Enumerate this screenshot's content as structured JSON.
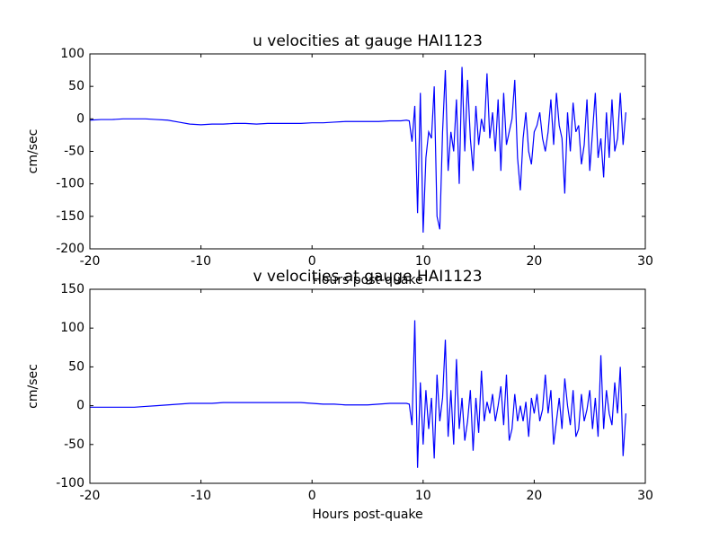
{
  "chart_data": [
    {
      "type": "line",
      "title": "u velocities at gauge HAI1123",
      "xlabel": "Hours post-quake",
      "ylabel": "cm/sec",
      "xlim": [
        -20,
        30
      ],
      "ylim": [
        -200,
        100
      ],
      "xticks": [
        -20,
        -10,
        0,
        10,
        20,
        30
      ],
      "yticks": [
        -200,
        -150,
        -100,
        -50,
        0,
        50,
        100
      ],
      "x": [
        -20,
        -19,
        -18,
        -17,
        -16,
        -15,
        -14,
        -13,
        -12,
        -11,
        -10,
        -9,
        -8,
        -7,
        -6,
        -5,
        -4,
        -3,
        -2,
        -1,
        0,
        1,
        2,
        3,
        4,
        5,
        6,
        7,
        8,
        8.5,
        8.75,
        9,
        9.25,
        9.5,
        9.75,
        10,
        10.25,
        10.5,
        10.75,
        11,
        11.25,
        11.5,
        11.75,
        12,
        12.25,
        12.5,
        12.75,
        13,
        13.25,
        13.5,
        13.75,
        14,
        14.25,
        14.5,
        14.75,
        15,
        15.25,
        15.5,
        15.75,
        16,
        16.25,
        16.5,
        16.75,
        17,
        17.25,
        17.5,
        17.75,
        18,
        18.25,
        18.5,
        18.75,
        19,
        19.25,
        19.5,
        19.75,
        20,
        20.25,
        20.5,
        20.75,
        21,
        21.25,
        21.5,
        21.75,
        22,
        22.25,
        22.5,
        22.75,
        23,
        23.25,
        23.5,
        23.75,
        24,
        24.25,
        24.5,
        24.75,
        25,
        25.25,
        25.5,
        25.75,
        26,
        26.25,
        26.5,
        26.75,
        27,
        27.25,
        27.5,
        27.75,
        28,
        28.25
      ],
      "series": [
        {
          "color": "#0000ff",
          "values": [
            -2,
            -1,
            -1,
            0,
            0,
            0,
            -1,
            -2,
            -5,
            -8,
            -9,
            -8,
            -8,
            -7,
            -7,
            -8,
            -7,
            -7,
            -7,
            -7,
            -6,
            -6,
            -5,
            -4,
            -4,
            -4,
            -4,
            -3,
            -3,
            -2,
            -3,
            -35,
            20,
            -145,
            40,
            -175,
            -60,
            -20,
            -30,
            50,
            -150,
            -170,
            -20,
            75,
            -80,
            -20,
            -50,
            30,
            -100,
            80,
            -50,
            60,
            -30,
            -80,
            20,
            -40,
            0,
            -20,
            70,
            -30,
            10,
            -50,
            30,
            -80,
            40,
            -40,
            -20,
            0,
            60,
            -60,
            -110,
            -30,
            10,
            -50,
            -70,
            -20,
            -10,
            10,
            -30,
            -50,
            -20,
            30,
            -40,
            40,
            -10,
            -30,
            -115,
            10,
            -50,
            25,
            -20,
            -10,
            -70,
            -40,
            30,
            -80,
            -20,
            40,
            -60,
            -30,
            -90,
            10,
            -60,
            30,
            -50,
            -30,
            40,
            -40,
            10
          ]
        }
      ]
    },
    {
      "type": "line",
      "title": "v velocities at gauge HAI1123",
      "xlabel": "Hours post-quake",
      "ylabel": "cm/sec",
      "xlim": [
        -20,
        30
      ],
      "ylim": [
        -100,
        150
      ],
      "xticks": [
        -20,
        -10,
        0,
        10,
        20,
        30
      ],
      "yticks": [
        -100,
        -50,
        0,
        50,
        100,
        150
      ],
      "x": [
        -20,
        -19,
        -18,
        -17,
        -16,
        -15,
        -14,
        -13,
        -12,
        -11,
        -10,
        -9,
        -8,
        -7,
        -6,
        -5,
        -4,
        -3,
        -2,
        -1,
        0,
        1,
        2,
        3,
        4,
        5,
        6,
        7,
        8,
        8.5,
        8.75,
        9,
        9.25,
        9.5,
        9.75,
        10,
        10.25,
        10.5,
        10.75,
        11,
        11.25,
        11.5,
        11.75,
        12,
        12.25,
        12.5,
        12.75,
        13,
        13.25,
        13.5,
        13.75,
        14,
        14.25,
        14.5,
        14.75,
        15,
        15.25,
        15.5,
        15.75,
        16,
        16.25,
        16.5,
        16.75,
        17,
        17.25,
        17.5,
        17.75,
        18,
        18.25,
        18.5,
        18.75,
        19,
        19.25,
        19.5,
        19.75,
        20,
        20.25,
        20.5,
        20.75,
        21,
        21.25,
        21.5,
        21.75,
        22,
        22.25,
        22.5,
        22.75,
        23,
        23.25,
        23.5,
        23.75,
        24,
        24.25,
        24.5,
        24.75,
        25,
        25.25,
        25.5,
        25.75,
        26,
        26.25,
        26.5,
        26.75,
        27,
        27.25,
        27.5,
        27.75,
        28,
        28.25
      ],
      "series": [
        {
          "color": "#0000ff",
          "values": [
            -2,
            -2,
            -2,
            -2,
            -2,
            -1,
            0,
            1,
            2,
            3,
            3,
            3,
            4,
            4,
            4,
            4,
            4,
            4,
            4,
            4,
            3,
            2,
            2,
            1,
            1,
            1,
            2,
            3,
            3,
            3,
            2,
            -25,
            110,
            -80,
            30,
            -50,
            20,
            -30,
            10,
            -68,
            40,
            -20,
            10,
            85,
            -40,
            20,
            -50,
            60,
            -30,
            10,
            -45,
            -20,
            20,
            -58,
            10,
            -35,
            45,
            -20,
            5,
            -10,
            15,
            -20,
            0,
            25,
            -25,
            40,
            -45,
            -30,
            15,
            -20,
            0,
            -20,
            5,
            -40,
            10,
            -10,
            15,
            -20,
            -5,
            40,
            -10,
            20,
            -50,
            -20,
            10,
            -30,
            35,
            0,
            -25,
            20,
            -40,
            -30,
            15,
            -20,
            -5,
            20,
            -30,
            10,
            -40,
            65,
            -30,
            20,
            -10,
            -25,
            30,
            -10,
            50,
            -65,
            -10
          ]
        }
      ]
    }
  ]
}
